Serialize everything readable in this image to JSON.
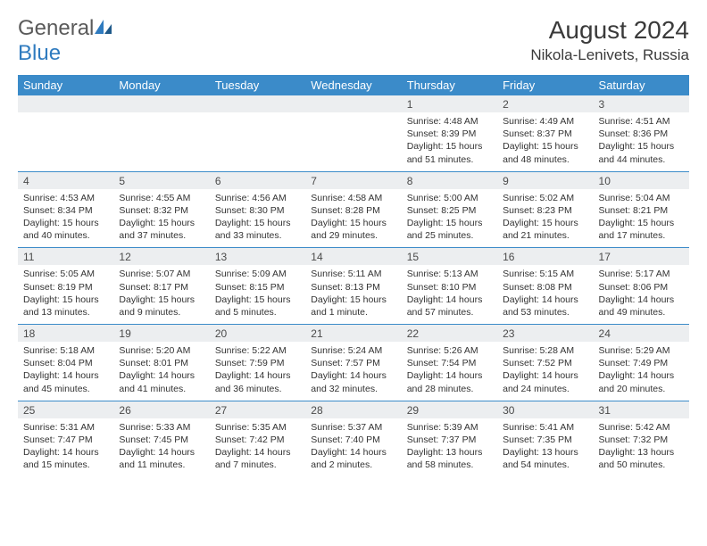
{
  "brand": {
    "name_part1": "General",
    "name_part2": "Blue"
  },
  "title": "August 2024",
  "location": "Nikola-Lenivets, Russia",
  "colors": {
    "header_bg": "#3b8bc9",
    "header_text": "#ffffff",
    "daynum_bg": "#eceef0",
    "text": "#333333",
    "brand_gray": "#5a5a5a",
    "brand_blue": "#2f7bbf"
  },
  "day_headers": [
    "Sunday",
    "Monday",
    "Tuesday",
    "Wednesday",
    "Thursday",
    "Friday",
    "Saturday"
  ],
  "weeks": [
    [
      null,
      null,
      null,
      null,
      {
        "n": "1",
        "sr": "4:48 AM",
        "ss": "8:39 PM",
        "dl": "15 hours and 51 minutes."
      },
      {
        "n": "2",
        "sr": "4:49 AM",
        "ss": "8:37 PM",
        "dl": "15 hours and 48 minutes."
      },
      {
        "n": "3",
        "sr": "4:51 AM",
        "ss": "8:36 PM",
        "dl": "15 hours and 44 minutes."
      }
    ],
    [
      {
        "n": "4",
        "sr": "4:53 AM",
        "ss": "8:34 PM",
        "dl": "15 hours and 40 minutes."
      },
      {
        "n": "5",
        "sr": "4:55 AM",
        "ss": "8:32 PM",
        "dl": "15 hours and 37 minutes."
      },
      {
        "n": "6",
        "sr": "4:56 AM",
        "ss": "8:30 PM",
        "dl": "15 hours and 33 minutes."
      },
      {
        "n": "7",
        "sr": "4:58 AM",
        "ss": "8:28 PM",
        "dl": "15 hours and 29 minutes."
      },
      {
        "n": "8",
        "sr": "5:00 AM",
        "ss": "8:25 PM",
        "dl": "15 hours and 25 minutes."
      },
      {
        "n": "9",
        "sr": "5:02 AM",
        "ss": "8:23 PM",
        "dl": "15 hours and 21 minutes."
      },
      {
        "n": "10",
        "sr": "5:04 AM",
        "ss": "8:21 PM",
        "dl": "15 hours and 17 minutes."
      }
    ],
    [
      {
        "n": "11",
        "sr": "5:05 AM",
        "ss": "8:19 PM",
        "dl": "15 hours and 13 minutes."
      },
      {
        "n": "12",
        "sr": "5:07 AM",
        "ss": "8:17 PM",
        "dl": "15 hours and 9 minutes."
      },
      {
        "n": "13",
        "sr": "5:09 AM",
        "ss": "8:15 PM",
        "dl": "15 hours and 5 minutes."
      },
      {
        "n": "14",
        "sr": "5:11 AM",
        "ss": "8:13 PM",
        "dl": "15 hours and 1 minute."
      },
      {
        "n": "15",
        "sr": "5:13 AM",
        "ss": "8:10 PM",
        "dl": "14 hours and 57 minutes."
      },
      {
        "n": "16",
        "sr": "5:15 AM",
        "ss": "8:08 PM",
        "dl": "14 hours and 53 minutes."
      },
      {
        "n": "17",
        "sr": "5:17 AM",
        "ss": "8:06 PM",
        "dl": "14 hours and 49 minutes."
      }
    ],
    [
      {
        "n": "18",
        "sr": "5:18 AM",
        "ss": "8:04 PM",
        "dl": "14 hours and 45 minutes."
      },
      {
        "n": "19",
        "sr": "5:20 AM",
        "ss": "8:01 PM",
        "dl": "14 hours and 41 minutes."
      },
      {
        "n": "20",
        "sr": "5:22 AM",
        "ss": "7:59 PM",
        "dl": "14 hours and 36 minutes."
      },
      {
        "n": "21",
        "sr": "5:24 AM",
        "ss": "7:57 PM",
        "dl": "14 hours and 32 minutes."
      },
      {
        "n": "22",
        "sr": "5:26 AM",
        "ss": "7:54 PM",
        "dl": "14 hours and 28 minutes."
      },
      {
        "n": "23",
        "sr": "5:28 AM",
        "ss": "7:52 PM",
        "dl": "14 hours and 24 minutes."
      },
      {
        "n": "24",
        "sr": "5:29 AM",
        "ss": "7:49 PM",
        "dl": "14 hours and 20 minutes."
      }
    ],
    [
      {
        "n": "25",
        "sr": "5:31 AM",
        "ss": "7:47 PM",
        "dl": "14 hours and 15 minutes."
      },
      {
        "n": "26",
        "sr": "5:33 AM",
        "ss": "7:45 PM",
        "dl": "14 hours and 11 minutes."
      },
      {
        "n": "27",
        "sr": "5:35 AM",
        "ss": "7:42 PM",
        "dl": "14 hours and 7 minutes."
      },
      {
        "n": "28",
        "sr": "5:37 AM",
        "ss": "7:40 PM",
        "dl": "14 hours and 2 minutes."
      },
      {
        "n": "29",
        "sr": "5:39 AM",
        "ss": "7:37 PM",
        "dl": "13 hours and 58 minutes."
      },
      {
        "n": "30",
        "sr": "5:41 AM",
        "ss": "7:35 PM",
        "dl": "13 hours and 54 minutes."
      },
      {
        "n": "31",
        "sr": "5:42 AM",
        "ss": "7:32 PM",
        "dl": "13 hours and 50 minutes."
      }
    ]
  ],
  "labels": {
    "sunrise": "Sunrise:",
    "sunset": "Sunset:",
    "daylight": "Daylight:"
  }
}
